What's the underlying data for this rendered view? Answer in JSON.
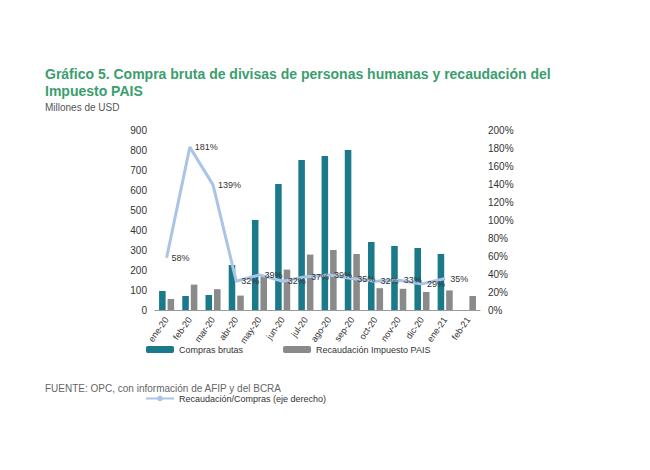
{
  "chart_data": {
    "type": "bar",
    "title": "Gráfico 5. Compra bruta de divisas de personas humanas y recaudación del Impuesto PAIS",
    "subtitle": "Millones de USD",
    "source": "FUENTE: OPC, con información de AFIP y del BCRA",
    "categories": [
      "ene-20",
      "feb-20",
      "mar-20",
      "abr-20",
      "may-20",
      "jun-20",
      "jul-20",
      "ago-20",
      "sep-20",
      "oct-20",
      "nov-20",
      "dic-20",
      "ene-21",
      "feb-21"
    ],
    "series": [
      {
        "name": "Compras brutas",
        "type": "bar",
        "color": "#1b7a8a",
        "values": [
          95,
          70,
          75,
          225,
          450,
          630,
          750,
          770,
          800,
          340,
          320,
          310,
          280,
          null
        ]
      },
      {
        "name": "Recaudación Impuesto PAIS",
        "type": "bar",
        "color": "#8a8a8a",
        "values": [
          55,
          127,
          104,
          72,
          175,
          202,
          277,
          300,
          280,
          109,
          106,
          90,
          98,
          70
        ]
      },
      {
        "name": "Recaudación/Compras (eje derecho)",
        "type": "line",
        "axis": "y2",
        "color": "#aac4e6",
        "values": [
          58,
          181,
          139,
          32,
          39,
          32,
          37,
          39,
          35,
          32,
          33,
          29,
          35,
          null
        ],
        "value_labels": [
          "58%",
          "181%",
          "139%",
          "32%",
          "39%",
          "32%",
          "37%",
          "39%",
          "35%",
          "32%",
          "33%",
          "29%",
          "35%",
          null
        ],
        "data_labels": true
      }
    ],
    "ylim": [
      0,
      900
    ],
    "yticks": [
      0,
      100,
      200,
      300,
      400,
      500,
      600,
      700,
      800,
      900
    ],
    "y2lim": [
      0,
      200
    ],
    "y2ticks": [
      {
        "value": 0,
        "label": "0%"
      },
      {
        "value": 20,
        "label": "20%"
      },
      {
        "value": 40,
        "label": "40%"
      },
      {
        "value": 60,
        "label": "60%"
      },
      {
        "value": 80,
        "label": "80%"
      },
      {
        "value": 100,
        "label": "100%"
      },
      {
        "value": 120,
        "label": "120%"
      },
      {
        "value": 140,
        "label": "140%"
      },
      {
        "value": 160,
        "label": "160%"
      },
      {
        "value": 180,
        "label": "180%"
      },
      {
        "value": 200,
        "label": "200%"
      }
    ],
    "grid": false,
    "legend": "bottom"
  }
}
